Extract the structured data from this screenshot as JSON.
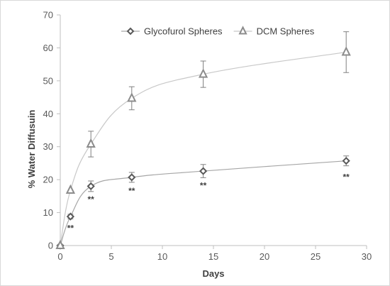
{
  "chart_data": {
    "type": "line",
    "xlabel": "Days",
    "ylabel": "% Water Diffusuin",
    "xlim": [
      0,
      30
    ],
    "ylim": [
      0,
      70
    ],
    "x_ticks": [
      "0",
      "5",
      "10",
      "15",
      "20",
      "25",
      "30"
    ],
    "y_ticks": [
      "0",
      "10",
      "20",
      "30",
      "40",
      "50",
      "60",
      "70"
    ],
    "grid": false,
    "legend_position": "top-right",
    "series": [
      {
        "name": "Glycofurol Spheres",
        "marker": "diamond",
        "color": "#595959",
        "curve_color": "#a6a6a6",
        "x": [
          0,
          1,
          3,
          7,
          14,
          28
        ],
        "y": [
          0,
          8.8,
          18.0,
          20.7,
          22.6,
          25.7
        ],
        "error": [
          0,
          0.7,
          1.6,
          1.5,
          2.0,
          1.5
        ]
      },
      {
        "name": "DCM Spheres",
        "marker": "triangle",
        "color": "#8c8c8c",
        "curve_color": "#c8c8c8",
        "x": [
          0,
          1,
          3,
          7,
          14,
          28
        ],
        "y": [
          0,
          16.8,
          30.8,
          44.7,
          52.0,
          58.7
        ],
        "error": [
          0,
          0,
          3.9,
          3.5,
          4.0,
          6.2
        ]
      }
    ],
    "annotations": [
      {
        "text": "**",
        "x": 1,
        "y": 4.4
      },
      {
        "text": "**",
        "x": 3,
        "y": 13.1
      },
      {
        "text": "**",
        "x": 7,
        "y": 15.7
      },
      {
        "text": "**",
        "x": 14,
        "y": 17.3
      },
      {
        "text": "**",
        "x": 28,
        "y": 19.9
      }
    ]
  }
}
